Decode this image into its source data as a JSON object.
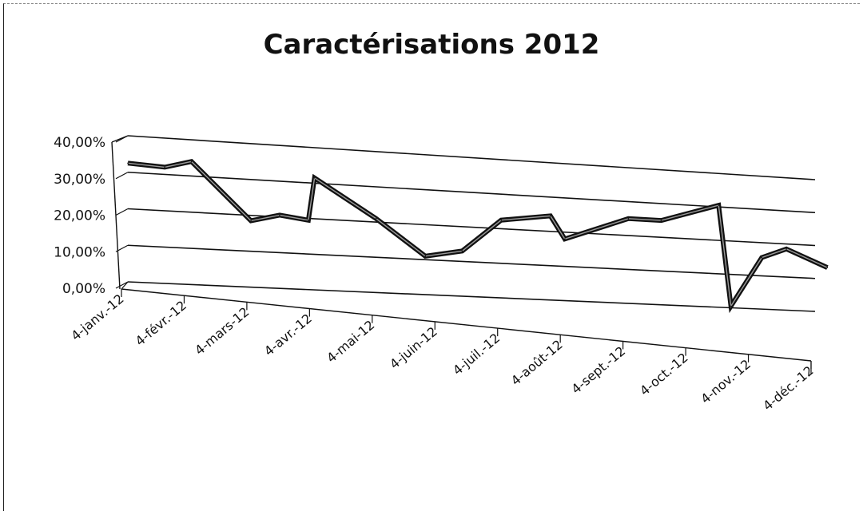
{
  "chart_data": {
    "type": "line",
    "title": "Caractérisations 2012",
    "xlabel": "",
    "ylabel": "",
    "ylim": [
      0,
      40
    ],
    "y_ticks": [
      "0,00%",
      "10,00%",
      "20,00%",
      "30,00%",
      "40,00%"
    ],
    "x_ticks": [
      "4-janv.-12",
      "4-févr.-12",
      "4-mars-12",
      "4-avr.-12",
      "4-mai-12",
      "4-juin-12",
      "4-juil.-12",
      "4-août-12",
      "4-sept.-12",
      "4-oct.-12",
      "4-nov.-12",
      "4-déc.-12"
    ],
    "grid": true,
    "legend": "none",
    "series": [
      {
        "x": [
          "2012-01-04",
          "2012-01-22",
          "2012-02-04",
          "2012-03-04",
          "2012-03-18",
          "2012-04-01",
          "2012-04-04",
          "2012-05-04",
          "2012-05-28",
          "2012-06-15",
          "2012-07-04",
          "2012-07-28",
          "2012-08-04",
          "2012-09-04",
          "2012-09-20",
          "2012-10-18",
          "2012-10-24",
          "2012-11-08",
          "2012-11-20",
          "2012-12-10"
        ],
        "values": [
          32.5,
          32.0,
          34.0,
          18.5,
          20.5,
          19.5,
          31.5,
          21.0,
          11.0,
          13.0,
          22.5,
          24.5,
          18.0,
          25.0,
          25.0,
          30.5,
          0.5,
          15.5,
          18.5,
          13.5
        ]
      }
    ]
  }
}
